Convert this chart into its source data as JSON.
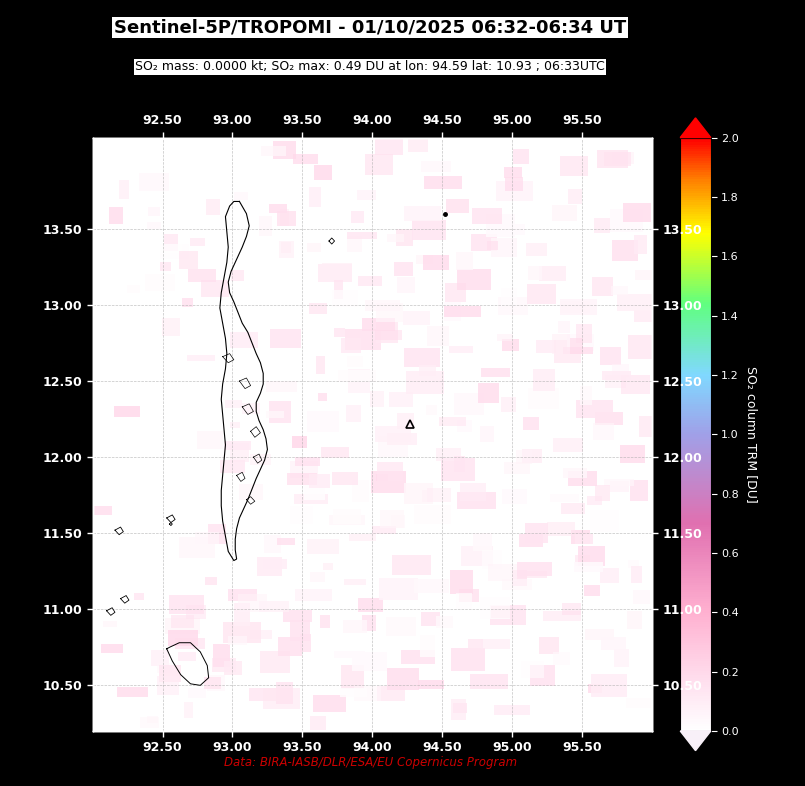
{
  "title": "Sentinel-5P/TROPOMI - 01/10/2025 06:32-06:34 UT",
  "subtitle": "SO₂ mass: 0.0000 kt; SO₂ max: 0.49 DU at lon: 94.59 lat: 10.93 ; 06:33UTC",
  "lon_min": 92.0,
  "lon_max": 96.0,
  "lat_min": 10.2,
  "lat_max": 14.1,
  "xticks": [
    92.5,
    93.0,
    93.5,
    94.0,
    94.5,
    95.0,
    95.5
  ],
  "yticks": [
    10.5,
    11.0,
    11.5,
    12.0,
    12.5,
    13.0,
    13.5
  ],
  "grid_color": "#aaaaaa",
  "grid_linestyle": "--",
  "figure_bg": "#000000",
  "map_bg": "#ffffff",
  "colorbar_min": 0.0,
  "colorbar_max": 2.0,
  "colorbar_label": "SO₂ column TRM [DU]",
  "colorbar_ticks": [
    0.0,
    0.2,
    0.4,
    0.6,
    0.8,
    1.0,
    1.2,
    1.4,
    1.6,
    1.8,
    2.0
  ],
  "data_source": "Data: BIRA-IASB/DLR/ESA/EU Copernicus Program",
  "triangle_lon": 94.27,
  "triangle_lat": 12.22,
  "dot_lon": 94.52,
  "dot_lat": 13.6,
  "so2_seed": 42,
  "title_fontsize": 13,
  "subtitle_fontsize": 9,
  "tick_fontsize": 9,
  "cbar_tick_fontsize": 8,
  "cbar_label_fontsize": 9
}
